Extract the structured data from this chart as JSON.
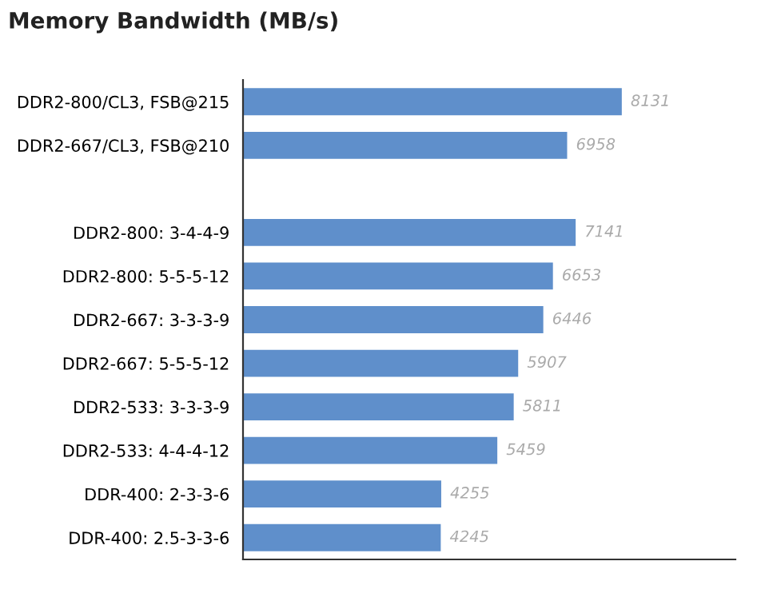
{
  "chart_data": {
    "type": "bar",
    "orientation": "horizontal",
    "title": "Memory Bandwidth (MB/s)",
    "categories": [
      "DDR2-800/CL3, FSB@215",
      "DDR2-667/CL3, FSB@210",
      null,
      "DDR2-800: 3-4-4-9",
      "DDR2-800: 5-5-5-12",
      "DDR2-667: 3-3-3-9",
      "DDR2-667: 5-5-5-12",
      "DDR2-533: 3-3-3-9",
      "DDR2-533: 4-4-4-12",
      "DDR-400: 2-3-3-6",
      "DDR-400: 2.5-3-3-6"
    ],
    "values": [
      8131,
      6958,
      null,
      7141,
      6653,
      6446,
      5907,
      5811,
      5459,
      4255,
      4245
    ],
    "color": "#5f8fcb",
    "data_labels": true,
    "grid": false,
    "legend": false
  }
}
